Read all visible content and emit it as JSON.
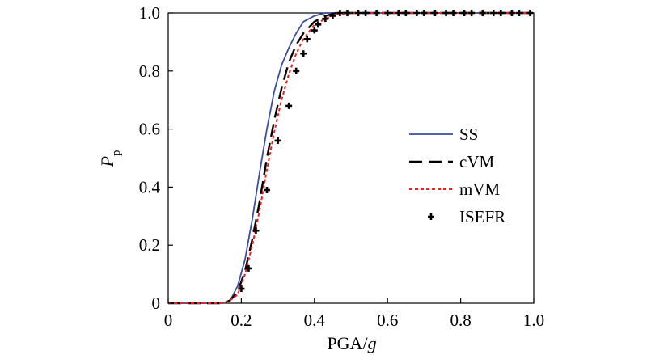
{
  "chart_data": {
    "type": "line",
    "xlabel": "PGA/",
    "xlabel_italic": "g",
    "ylabel": "P",
    "ylabel_sub": "p",
    "xlim": [
      0,
      1.0
    ],
    "ylim": [
      0,
      1.0
    ],
    "x_ticks": [
      "0",
      "0.2",
      "0.4",
      "0.6",
      "0.8",
      "1.0"
    ],
    "y_ticks": [
      "0",
      "0.2",
      "0.4",
      "0.6",
      "0.8",
      "1.0"
    ],
    "grid": false,
    "legend_position": "center-right",
    "series": [
      {
        "name": "SS",
        "style": "solid",
        "color": "#3a4fa0",
        "x": [
          0,
          0.15,
          0.17,
          0.19,
          0.21,
          0.23,
          0.25,
          0.27,
          0.29,
          0.31,
          0.33,
          0.35,
          0.37,
          0.4,
          0.43,
          0.45,
          0.5,
          0.6,
          0.8,
          1.0
        ],
        "y": [
          0,
          0,
          0.01,
          0.06,
          0.15,
          0.29,
          0.45,
          0.6,
          0.73,
          0.82,
          0.88,
          0.93,
          0.97,
          0.99,
          1.0,
          1.0,
          1.0,
          1.0,
          1.0,
          1.0
        ]
      },
      {
        "name": "cVM",
        "style": "dashed",
        "color": "#000000",
        "x": [
          0,
          0.15,
          0.17,
          0.19,
          0.21,
          0.23,
          0.25,
          0.27,
          0.29,
          0.31,
          0.33,
          0.35,
          0.37,
          0.4,
          0.43,
          0.46,
          0.5,
          0.6,
          0.8,
          1.0
        ],
        "y": [
          0,
          0,
          0.01,
          0.04,
          0.11,
          0.22,
          0.35,
          0.5,
          0.63,
          0.74,
          0.83,
          0.89,
          0.93,
          0.97,
          0.99,
          1.0,
          1.0,
          1.0,
          1.0,
          1.0
        ]
      },
      {
        "name": "mVM",
        "style": "dotted",
        "color": "#e8231f",
        "x": [
          0,
          0.15,
          0.17,
          0.19,
          0.21,
          0.23,
          0.25,
          0.27,
          0.29,
          0.31,
          0.33,
          0.35,
          0.37,
          0.4,
          0.43,
          0.46,
          0.5,
          0.6,
          0.8,
          1.0
        ],
        "y": [
          0,
          0,
          0.01,
          0.03,
          0.1,
          0.2,
          0.32,
          0.46,
          0.59,
          0.7,
          0.79,
          0.86,
          0.91,
          0.96,
          0.98,
          0.995,
          1.0,
          1.0,
          1.0,
          1.0
        ]
      },
      {
        "name": "ISEFR",
        "style": "markers",
        "color": "#000000",
        "x": [
          0.2,
          0.22,
          0.24,
          0.27,
          0.3,
          0.33,
          0.35,
          0.37,
          0.38,
          0.4,
          0.41,
          0.43,
          0.45,
          0.47,
          0.49,
          0.52,
          0.54,
          0.57,
          0.6,
          0.63,
          0.65,
          0.68,
          0.7,
          0.73,
          0.76,
          0.78,
          0.81,
          0.83,
          0.86,
          0.89,
          0.91,
          0.94,
          0.96,
          0.99
        ],
        "y": [
          0.05,
          0.12,
          0.25,
          0.39,
          0.56,
          0.68,
          0.8,
          0.86,
          0.91,
          0.94,
          0.96,
          0.98,
          0.99,
          1.0,
          1.0,
          1.0,
          1.0,
          1.0,
          1.0,
          1.0,
          1.0,
          1.0,
          1.0,
          1.0,
          1.0,
          1.0,
          1.0,
          1.0,
          1.0,
          1.0,
          1.0,
          1.0,
          1.0,
          1.0
        ]
      }
    ]
  }
}
